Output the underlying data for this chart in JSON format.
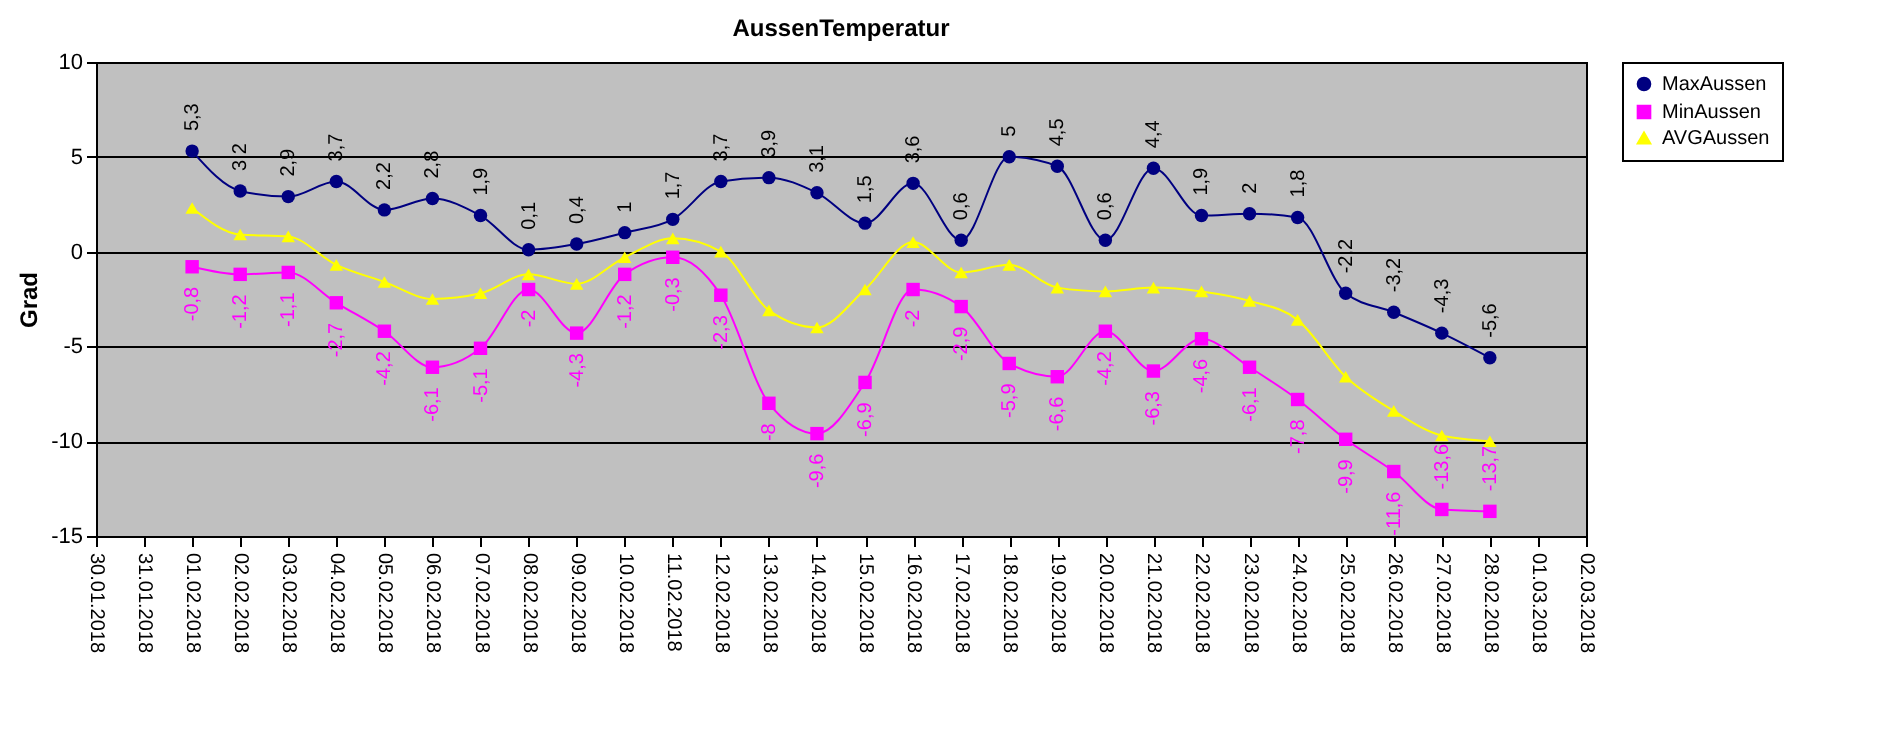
{
  "chart_data": {
    "type": "line",
    "title": "AussenTemperatur",
    "ylabel": "Grad",
    "x": [
      "2018-02-01",
      "2018-02-02",
      "2018-02-03",
      "2018-02-04",
      "2018-02-05",
      "2018-02-06",
      "2018-02-07",
      "2018-02-08",
      "2018-02-09",
      "2018-02-10",
      "2018-02-11",
      "2018-02-12",
      "2018-02-13",
      "2018-02-14",
      "2018-02-15",
      "2018-02-16",
      "2018-02-17",
      "2018-02-18",
      "2018-02-19",
      "2018-02-20",
      "2018-02-21",
      "2018-02-22",
      "2018-02-23",
      "2018-02-24",
      "2018-02-25",
      "2018-02-26",
      "2018-02-27",
      "2018-02-28"
    ],
    "series": [
      {
        "name": "MaxAussen",
        "color": "#000080",
        "marker": "circle",
        "values": [
          5.3,
          3.2,
          2.9,
          3.7,
          2.2,
          2.8,
          1.9,
          0.1,
          0.4,
          1,
          1.7,
          3.7,
          3.9,
          3.1,
          1.5,
          3.6,
          0.6,
          5,
          4.5,
          0.6,
          4.4,
          1.9,
          2,
          1.8,
          -2.2,
          -3.2,
          -4.3,
          -5.6
        ],
        "value_labels": [
          "5,3",
          "3,2",
          "2,9",
          "3,7",
          "2,2",
          "2,8",
          "1,9",
          "0,1",
          "0,4",
          "1",
          "1,7",
          "3,7",
          "3,9",
          "3,1",
          "1,5",
          "3,6",
          "0,6",
          "5",
          "4,5",
          "0,6",
          "4,4",
          "1,9",
          "2",
          "1,8",
          "-2,2",
          "-3,2",
          "-4,3",
          "-5,6"
        ]
      },
      {
        "name": "MinAussen",
        "color": "#ff00ff",
        "marker": "square",
        "values": [
          -0.8,
          -1.2,
          -1.1,
          -2.7,
          -4.2,
          -6.1,
          -5.1,
          -2,
          -4.3,
          -1.2,
          -0.3,
          -2.3,
          -8,
          -9.6,
          -6.9,
          -2,
          -2.9,
          -5.9,
          -6.6,
          -4.2,
          -6.3,
          -4.6,
          -6.1,
          -7.8,
          -9.9,
          -11.6,
          -13.6,
          -13.7
        ],
        "value_labels": [
          "-0,8",
          "-1,2",
          "-1,1",
          "-2,7",
          "-4,2",
          "-6,1",
          "-5,1",
          "-2",
          "-4,3",
          "-1,2",
          "-0,3",
          "-2,3",
          "-8",
          "-9,6",
          "-6,9",
          "-2",
          "-2,9",
          "-5,9",
          "-6,6",
          "-4,2",
          "-6,3",
          "-4,6",
          "-6,1",
          "-7,8",
          "-9,9",
          "-11,6",
          "-13,6",
          "-13,7"
        ]
      },
      {
        "name": "AVGAussen",
        "color": "#ffff00",
        "marker": "triangle",
        "values": [
          2.3,
          0.9,
          0.8,
          -0.7,
          -1.6,
          -2.5,
          -2.2,
          -1.2,
          -1.7,
          -0.3,
          0.7,
          0,
          -3.1,
          -4,
          -2,
          0.5,
          -1.1,
          -0.7,
          -1.9,
          -2.1,
          -1.9,
          -2.1,
          -2.6,
          -3.6,
          -6.6,
          -8.4,
          -9.7,
          -10
        ]
      }
    ],
    "xlim": [
      "2018-01-30",
      "2018-03-02"
    ],
    "xticks": [
      {
        "value": "2018-01-30",
        "label": "30.01.2018"
      },
      {
        "value": "2018-01-31",
        "label": "31.01.2018"
      },
      {
        "value": "2018-02-01",
        "label": "01.02.2018"
      },
      {
        "value": "2018-02-02",
        "label": "02.02.2018"
      },
      {
        "value": "2018-02-03",
        "label": "03.02.2018"
      },
      {
        "value": "2018-02-04",
        "label": "04.02.2018"
      },
      {
        "value": "2018-02-05",
        "label": "05.02.2018"
      },
      {
        "value": "2018-02-06",
        "label": "06.02.2018"
      },
      {
        "value": "2018-02-07",
        "label": "07.02.2018"
      },
      {
        "value": "2018-02-08",
        "label": "08.02.2018"
      },
      {
        "value": "2018-02-09",
        "label": "09.02.2018"
      },
      {
        "value": "2018-02-10",
        "label": "10.02.2018"
      },
      {
        "value": "2018-02-11",
        "label": "11.02.2018"
      },
      {
        "value": "2018-02-12",
        "label": "12.02.2018"
      },
      {
        "value": "2018-02-13",
        "label": "13.02.2018"
      },
      {
        "value": "2018-02-14",
        "label": "14.02.2018"
      },
      {
        "value": "2018-02-15",
        "label": "15.02.2018"
      },
      {
        "value": "2018-02-16",
        "label": "16.02.2018"
      },
      {
        "value": "2018-02-17",
        "label": "17.02.2018"
      },
      {
        "value": "2018-02-18",
        "label": "18.02.2018"
      },
      {
        "value": "2018-02-19",
        "label": "19.02.2018"
      },
      {
        "value": "2018-02-20",
        "label": "20.02.2018"
      },
      {
        "value": "2018-02-21",
        "label": "21.02.2018"
      },
      {
        "value": "2018-02-22",
        "label": "22.02.2018"
      },
      {
        "value": "2018-02-23",
        "label": "23.02.2018"
      },
      {
        "value": "2018-02-24",
        "label": "24.02.2018"
      },
      {
        "value": "2018-02-25",
        "label": "25.02.2018"
      },
      {
        "value": "2018-02-26",
        "label": "26.02.2018"
      },
      {
        "value": "2018-02-27",
        "label": "27.02.2018"
      },
      {
        "value": "2018-02-28",
        "label": "28.02.2018"
      },
      {
        "value": "2018-03-01",
        "label": "01.03.2018"
      },
      {
        "value": "2018-03-02",
        "label": "02.03.2018"
      }
    ],
    "ylim": [
      -15,
      10
    ],
    "yticks": [
      -15,
      -10,
      -5,
      0,
      5,
      10
    ],
    "grid": "y",
    "legend": "right"
  }
}
